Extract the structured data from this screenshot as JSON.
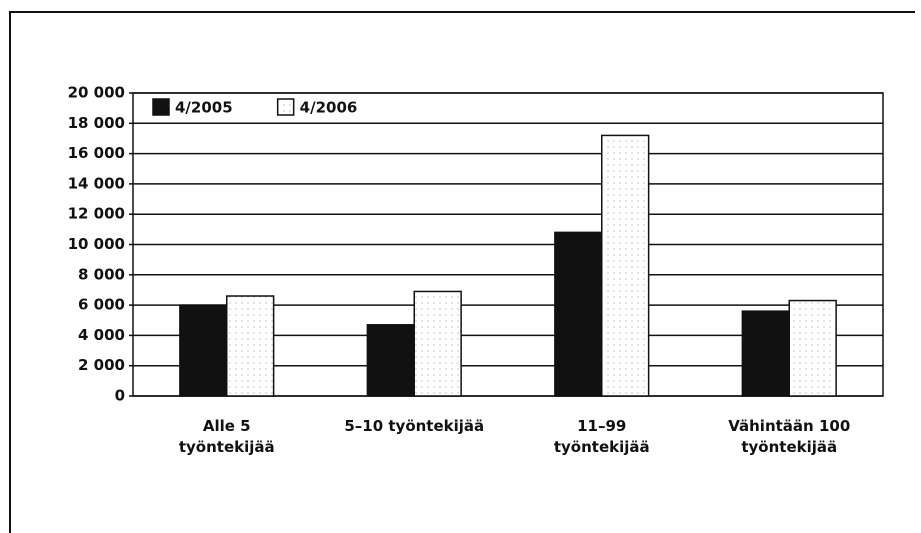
{
  "chart_data": {
    "type": "bar",
    "categories": [
      "Alle 5 työntekijää",
      "5–10 työntekijää",
      "11–99 työntekijää",
      "Vähintään 100 työntekijää"
    ],
    "series": [
      {
        "name": "4/2005",
        "color": "#111111",
        "values": [
          6000,
          4700,
          10800,
          5600
        ]
      },
      {
        "name": "4/2006",
        "color": "#ffffff",
        "values": [
          6600,
          6900,
          17200,
          6300
        ]
      }
    ],
    "ylim": [
      0,
      20000
    ],
    "yticks": [
      0,
      {
        "value": 2000,
        "label": "2 000"
      },
      {
        "value": 4000,
        "label": "4 000"
      },
      {
        "value": 6000,
        "label": "6 000"
      },
      {
        "value": 8000,
        "label": "8 000"
      },
      {
        "value": 10000,
        "label": "10 000"
      },
      {
        "value": 12000,
        "label": "12 000"
      },
      {
        "value": 14000,
        "label": "14 000"
      },
      {
        "value": 16000,
        "label": "16 000"
      },
      {
        "value": 18000,
        "label": "18 000"
      },
      {
        "value": 20000,
        "label": "20 000"
      }
    ],
    "grid": true,
    "legend": "upper left"
  }
}
